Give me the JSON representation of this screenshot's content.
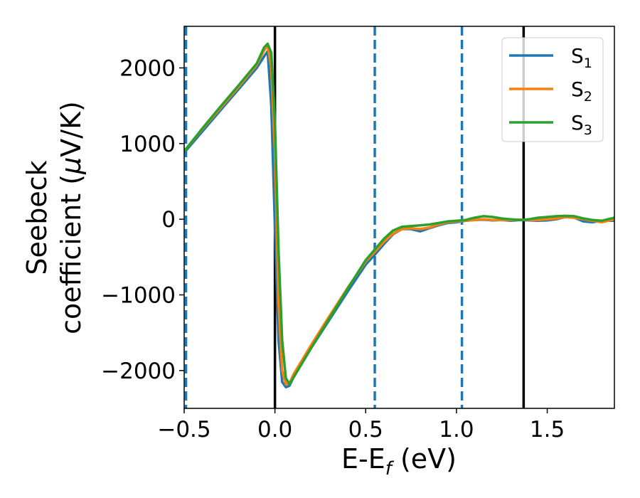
{
  "chart_data": {
    "type": "line",
    "xlabel": "E-E",
    "xlabel_sub": "f",
    "xlabel_unit": " (eV)",
    "ylabel_line1": "Seebeck",
    "ylabel_line2": "coefficient  (",
    "ylabel_mu": "μ",
    "ylabel_unit": "V/K)",
    "xlim": [
      -0.5,
      1.87
    ],
    "ylim": [
      -2500,
      2550
    ],
    "xticks": [
      -0.5,
      0.0,
      0.5,
      1.0,
      1.5
    ],
    "xtick_labels": [
      "−0.5",
      "0.0",
      "0.5",
      "1.0",
      "1.5"
    ],
    "yticks": [
      -2000,
      -1000,
      0,
      1000,
      2000
    ],
    "ytick_labels": [
      "−2000",
      "−1000",
      "0",
      "1000",
      "2000"
    ],
    "grid": false,
    "legend_position": "top-right",
    "vlines_solid": [
      0.0,
      1.37
    ],
    "vlines_dashed": [
      -0.49,
      0.55,
      1.03
    ],
    "series": [
      {
        "name": "S",
        "sub": "1",
        "color": "#1f77b4",
        "x": [
          -0.5,
          -0.4,
          -0.3,
          -0.2,
          -0.1,
          -0.06,
          -0.04,
          -0.02,
          0.0,
          0.02,
          0.04,
          0.06,
          0.08,
          0.1,
          0.2,
          0.3,
          0.4,
          0.5,
          0.55,
          0.6,
          0.65,
          0.7,
          0.75,
          0.8,
          0.85,
          0.9,
          0.95,
          1.0,
          1.05,
          1.1,
          1.15,
          1.2,
          1.25,
          1.3,
          1.35,
          1.4,
          1.45,
          1.5,
          1.55,
          1.6,
          1.65,
          1.7,
          1.75,
          1.8,
          1.87
        ],
        "y": [
          880,
          1160,
          1440,
          1720,
          2000,
          2150,
          2220,
          1500,
          -100,
          -1600,
          -2150,
          -2220,
          -2200,
          -2100,
          -1700,
          -1330,
          -960,
          -600,
          -470,
          -330,
          -200,
          -130,
          -130,
          -160,
          -120,
          -80,
          -50,
          -40,
          -20,
          -10,
          -5,
          -15,
          -10,
          -20,
          -10,
          -15,
          -20,
          -15,
          0,
          30,
          20,
          -30,
          -40,
          -20,
          -20
        ]
      },
      {
        "name": "S",
        "sub": "2",
        "color": "#ff7f0e",
        "x": [
          -0.5,
          -0.4,
          -0.3,
          -0.2,
          -0.1,
          -0.06,
          -0.04,
          -0.02,
          0.0,
          0.02,
          0.04,
          0.06,
          0.08,
          0.1,
          0.2,
          0.3,
          0.4,
          0.5,
          0.55,
          0.6,
          0.65,
          0.7,
          0.75,
          0.8,
          0.85,
          0.9,
          0.95,
          1.0,
          1.05,
          1.1,
          1.15,
          1.2,
          1.25,
          1.3,
          1.35,
          1.4,
          1.45,
          1.5,
          1.55,
          1.6,
          1.65,
          1.7,
          1.75,
          1.8,
          1.87
        ],
        "y": [
          900,
          1190,
          1470,
          1750,
          2040,
          2230,
          2300,
          2000,
          900,
          -1100,
          -2000,
          -2180,
          -2170,
          -2060,
          -1660,
          -1280,
          -910,
          -560,
          -430,
          -300,
          -190,
          -130,
          -120,
          -130,
          -110,
          -70,
          -40,
          -30,
          -20,
          -10,
          0,
          -10,
          -10,
          -10,
          -5,
          -10,
          -10,
          0,
          10,
          30,
          20,
          0,
          -20,
          -40,
          0
        ]
      },
      {
        "name": "S",
        "sub": "3",
        "color": "#2ca02c",
        "x": [
          -0.5,
          -0.4,
          -0.3,
          -0.2,
          -0.1,
          -0.06,
          -0.04,
          -0.02,
          0.0,
          0.02,
          0.04,
          0.06,
          0.08,
          0.1,
          0.2,
          0.3,
          0.4,
          0.5,
          0.55,
          0.6,
          0.65,
          0.7,
          0.75,
          0.8,
          0.85,
          0.9,
          0.95,
          1.0,
          1.05,
          1.1,
          1.15,
          1.2,
          1.25,
          1.3,
          1.35,
          1.4,
          1.45,
          1.5,
          1.55,
          1.6,
          1.65,
          1.7,
          1.75,
          1.8,
          1.87
        ],
        "y": [
          900,
          1200,
          1490,
          1770,
          2060,
          2270,
          2320,
          2200,
          1300,
          -400,
          -1600,
          -2100,
          -2180,
          -2100,
          -1700,
          -1310,
          -920,
          -540,
          -400,
          -260,
          -150,
          -100,
          -90,
          -80,
          -70,
          -50,
          -30,
          -20,
          -10,
          20,
          40,
          30,
          10,
          0,
          -10,
          0,
          20,
          30,
          40,
          45,
          40,
          10,
          -10,
          -20,
          20
        ]
      }
    ]
  }
}
